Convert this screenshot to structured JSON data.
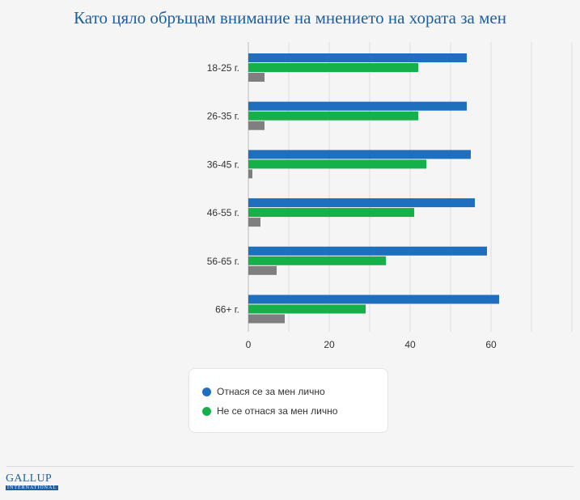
{
  "chart_data": {
    "type": "bar",
    "orientation": "horizontal",
    "title": "Като цяло обръщам внимание на мнението на хората за мен",
    "categories": [
      "18-25 г.",
      "26-35 г.",
      "36-45 г.",
      "46-55 г.",
      "56-65 г.",
      "66+ г."
    ],
    "series": [
      {
        "name": "Отнася се за мен лично",
        "color": "#1f6fbf",
        "values": [
          54,
          54,
          55,
          56,
          59,
          62
        ]
      },
      {
        "name": "Не се отнася за мен лично",
        "color": "#16b04a",
        "values": [
          42,
          42,
          44,
          41,
          34,
          29
        ]
      },
      {
        "name": "",
        "color": "#7f7f7f",
        "values": [
          4,
          4,
          1,
          3,
          7,
          9
        ]
      }
    ],
    "xlim": [
      0,
      80
    ],
    "xticks": [
      0,
      20,
      40,
      60
    ],
    "grid": true,
    "legend_position": "bottom"
  },
  "footer": {
    "logo_main": "GALLUP",
    "logo_sub": "INTERNATIONAL"
  }
}
